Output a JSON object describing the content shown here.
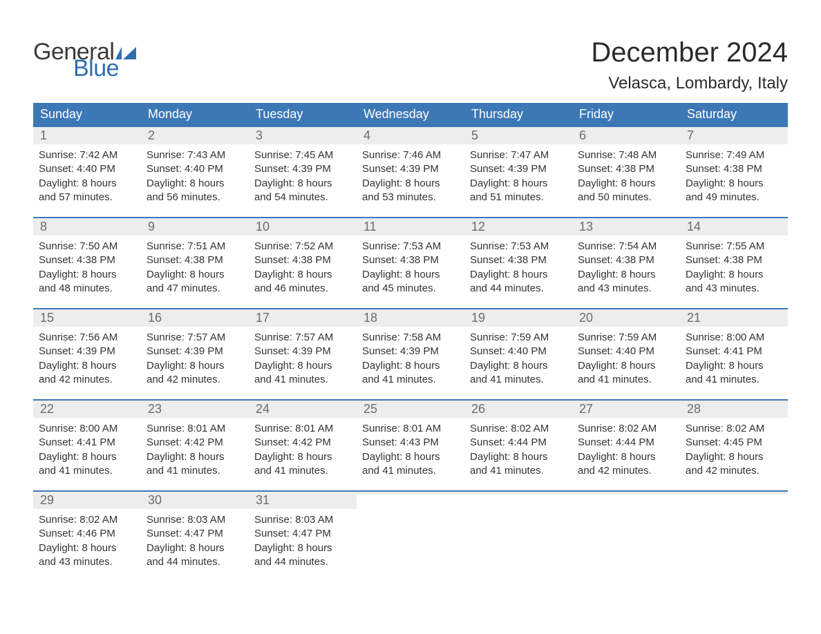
{
  "logo": {
    "text1": "General",
    "text2": "Blue"
  },
  "title": "December 2024",
  "location": "Velasca, Lombardy, Italy",
  "colors": {
    "header_bg": "#3d78b6",
    "header_text": "#ffffff",
    "daynum_bg": "#ededed",
    "daynum_text": "#6b6b6b",
    "body_text": "#333333",
    "accent": "#2f6fb0",
    "page_bg": "#ffffff",
    "week_border": "#3d78b6"
  },
  "typography": {
    "title_fontsize": 40,
    "location_fontsize": 24,
    "header_fontsize": 18,
    "daynum_fontsize": 18,
    "body_fontsize": 15,
    "logo_fontsize": 34
  },
  "dayNames": [
    "Sunday",
    "Monday",
    "Tuesday",
    "Wednesday",
    "Thursday",
    "Friday",
    "Saturday"
  ],
  "weeks": [
    [
      {
        "n": "1",
        "sunrise": "Sunrise: 7:42 AM",
        "sunset": "Sunset: 4:40 PM",
        "dl1": "Daylight: 8 hours",
        "dl2": "and 57 minutes."
      },
      {
        "n": "2",
        "sunrise": "Sunrise: 7:43 AM",
        "sunset": "Sunset: 4:40 PM",
        "dl1": "Daylight: 8 hours",
        "dl2": "and 56 minutes."
      },
      {
        "n": "3",
        "sunrise": "Sunrise: 7:45 AM",
        "sunset": "Sunset: 4:39 PM",
        "dl1": "Daylight: 8 hours",
        "dl2": "and 54 minutes."
      },
      {
        "n": "4",
        "sunrise": "Sunrise: 7:46 AM",
        "sunset": "Sunset: 4:39 PM",
        "dl1": "Daylight: 8 hours",
        "dl2": "and 53 minutes."
      },
      {
        "n": "5",
        "sunrise": "Sunrise: 7:47 AM",
        "sunset": "Sunset: 4:39 PM",
        "dl1": "Daylight: 8 hours",
        "dl2": "and 51 minutes."
      },
      {
        "n": "6",
        "sunrise": "Sunrise: 7:48 AM",
        "sunset": "Sunset: 4:38 PM",
        "dl1": "Daylight: 8 hours",
        "dl2": "and 50 minutes."
      },
      {
        "n": "7",
        "sunrise": "Sunrise: 7:49 AM",
        "sunset": "Sunset: 4:38 PM",
        "dl1": "Daylight: 8 hours",
        "dl2": "and 49 minutes."
      }
    ],
    [
      {
        "n": "8",
        "sunrise": "Sunrise: 7:50 AM",
        "sunset": "Sunset: 4:38 PM",
        "dl1": "Daylight: 8 hours",
        "dl2": "and 48 minutes."
      },
      {
        "n": "9",
        "sunrise": "Sunrise: 7:51 AM",
        "sunset": "Sunset: 4:38 PM",
        "dl1": "Daylight: 8 hours",
        "dl2": "and 47 minutes."
      },
      {
        "n": "10",
        "sunrise": "Sunrise: 7:52 AM",
        "sunset": "Sunset: 4:38 PM",
        "dl1": "Daylight: 8 hours",
        "dl2": "and 46 minutes."
      },
      {
        "n": "11",
        "sunrise": "Sunrise: 7:53 AM",
        "sunset": "Sunset: 4:38 PM",
        "dl1": "Daylight: 8 hours",
        "dl2": "and 45 minutes."
      },
      {
        "n": "12",
        "sunrise": "Sunrise: 7:53 AM",
        "sunset": "Sunset: 4:38 PM",
        "dl1": "Daylight: 8 hours",
        "dl2": "and 44 minutes."
      },
      {
        "n": "13",
        "sunrise": "Sunrise: 7:54 AM",
        "sunset": "Sunset: 4:38 PM",
        "dl1": "Daylight: 8 hours",
        "dl2": "and 43 minutes."
      },
      {
        "n": "14",
        "sunrise": "Sunrise: 7:55 AM",
        "sunset": "Sunset: 4:38 PM",
        "dl1": "Daylight: 8 hours",
        "dl2": "and 43 minutes."
      }
    ],
    [
      {
        "n": "15",
        "sunrise": "Sunrise: 7:56 AM",
        "sunset": "Sunset: 4:39 PM",
        "dl1": "Daylight: 8 hours",
        "dl2": "and 42 minutes."
      },
      {
        "n": "16",
        "sunrise": "Sunrise: 7:57 AM",
        "sunset": "Sunset: 4:39 PM",
        "dl1": "Daylight: 8 hours",
        "dl2": "and 42 minutes."
      },
      {
        "n": "17",
        "sunrise": "Sunrise: 7:57 AM",
        "sunset": "Sunset: 4:39 PM",
        "dl1": "Daylight: 8 hours",
        "dl2": "and 41 minutes."
      },
      {
        "n": "18",
        "sunrise": "Sunrise: 7:58 AM",
        "sunset": "Sunset: 4:39 PM",
        "dl1": "Daylight: 8 hours",
        "dl2": "and 41 minutes."
      },
      {
        "n": "19",
        "sunrise": "Sunrise: 7:59 AM",
        "sunset": "Sunset: 4:40 PM",
        "dl1": "Daylight: 8 hours",
        "dl2": "and 41 minutes."
      },
      {
        "n": "20",
        "sunrise": "Sunrise: 7:59 AM",
        "sunset": "Sunset: 4:40 PM",
        "dl1": "Daylight: 8 hours",
        "dl2": "and 41 minutes."
      },
      {
        "n": "21",
        "sunrise": "Sunrise: 8:00 AM",
        "sunset": "Sunset: 4:41 PM",
        "dl1": "Daylight: 8 hours",
        "dl2": "and 41 minutes."
      }
    ],
    [
      {
        "n": "22",
        "sunrise": "Sunrise: 8:00 AM",
        "sunset": "Sunset: 4:41 PM",
        "dl1": "Daylight: 8 hours",
        "dl2": "and 41 minutes."
      },
      {
        "n": "23",
        "sunrise": "Sunrise: 8:01 AM",
        "sunset": "Sunset: 4:42 PM",
        "dl1": "Daylight: 8 hours",
        "dl2": "and 41 minutes."
      },
      {
        "n": "24",
        "sunrise": "Sunrise: 8:01 AM",
        "sunset": "Sunset: 4:42 PM",
        "dl1": "Daylight: 8 hours",
        "dl2": "and 41 minutes."
      },
      {
        "n": "25",
        "sunrise": "Sunrise: 8:01 AM",
        "sunset": "Sunset: 4:43 PM",
        "dl1": "Daylight: 8 hours",
        "dl2": "and 41 minutes."
      },
      {
        "n": "26",
        "sunrise": "Sunrise: 8:02 AM",
        "sunset": "Sunset: 4:44 PM",
        "dl1": "Daylight: 8 hours",
        "dl2": "and 41 minutes."
      },
      {
        "n": "27",
        "sunrise": "Sunrise: 8:02 AM",
        "sunset": "Sunset: 4:44 PM",
        "dl1": "Daylight: 8 hours",
        "dl2": "and 42 minutes."
      },
      {
        "n": "28",
        "sunrise": "Sunrise: 8:02 AM",
        "sunset": "Sunset: 4:45 PM",
        "dl1": "Daylight: 8 hours",
        "dl2": "and 42 minutes."
      }
    ],
    [
      {
        "n": "29",
        "sunrise": "Sunrise: 8:02 AM",
        "sunset": "Sunset: 4:46 PM",
        "dl1": "Daylight: 8 hours",
        "dl2": "and 43 minutes."
      },
      {
        "n": "30",
        "sunrise": "Sunrise: 8:03 AM",
        "sunset": "Sunset: 4:47 PM",
        "dl1": "Daylight: 8 hours",
        "dl2": "and 44 minutes."
      },
      {
        "n": "31",
        "sunrise": "Sunrise: 8:03 AM",
        "sunset": "Sunset: 4:47 PM",
        "dl1": "Daylight: 8 hours",
        "dl2": "and 44 minutes."
      },
      {
        "empty": true
      },
      {
        "empty": true
      },
      {
        "empty": true
      },
      {
        "empty": true
      }
    ]
  ]
}
